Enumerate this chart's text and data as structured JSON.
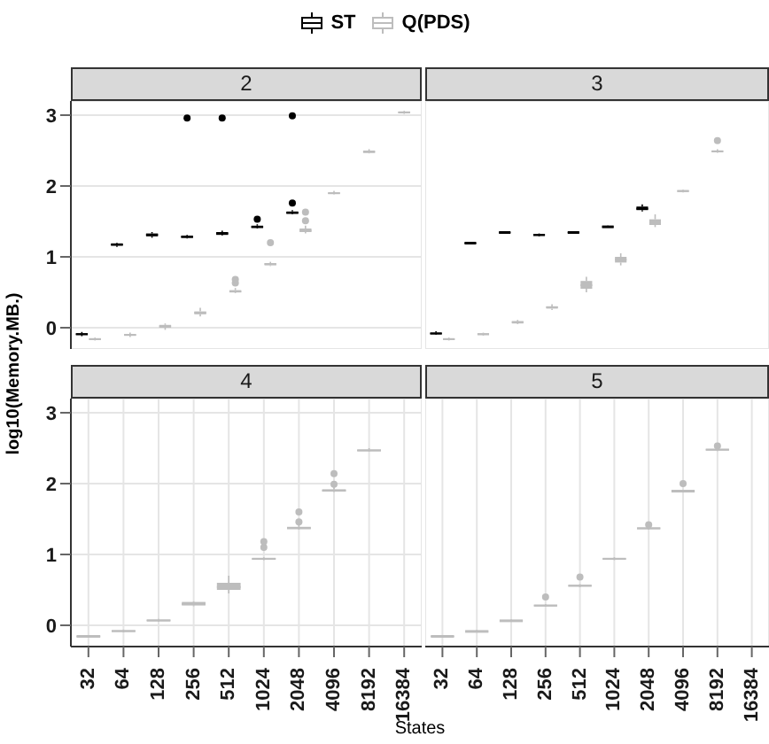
{
  "chart_data": [
    {
      "type": "box",
      "title": "2",
      "ylabel": "log10(Memory.MB.)",
      "legend": "top",
      "grid": true,
      "tick_labels": "y",
      "categories": [
        "32",
        "64",
        "128",
        "256",
        "512",
        "1024",
        "2048",
        "4096",
        "8192",
        "16384"
      ],
      "ylim": [
        -0.3,
        3.2
      ],
      "yticks": [
        0,
        1,
        2,
        3
      ],
      "series": [
        {
          "name": "ST",
          "color": "#000000",
          "boxes": [
            {
              "low": -0.12,
              "q1": -0.1,
              "median": -0.09,
              "q3": -0.08,
              "high": -0.06
            },
            {
              "low": 1.14,
              "q1": 1.16,
              "median": 1.17,
              "q3": 1.19,
              "high": 1.2
            },
            {
              "low": 1.27,
              "q1": 1.29,
              "median": 1.31,
              "q3": 1.33,
              "high": 1.35
            },
            {
              "low": 1.26,
              "q1": 1.27,
              "median": 1.28,
              "q3": 1.3,
              "high": 1.31,
              "outliers": [
                2.96
              ]
            },
            {
              "low": 1.3,
              "q1": 1.31,
              "median": 1.33,
              "q3": 1.35,
              "high": 1.37,
              "outliers": [
                2.96
              ]
            },
            {
              "low": 1.4,
              "q1": 1.41,
              "median": 1.42,
              "q3": 1.44,
              "high": 1.46,
              "outliers": [
                1.53
              ]
            },
            {
              "low": 1.6,
              "q1": 1.61,
              "median": 1.62,
              "q3": 1.64,
              "high": 1.66,
              "outliers": [
                1.76,
                2.99
              ]
            },
            null,
            null,
            null
          ]
        },
        {
          "name": "Q(PDS)",
          "color": "#bdbdbd",
          "boxes": [
            {
              "low": -0.18,
              "q1": -0.17,
              "median": -0.16,
              "q3": -0.15,
              "high": -0.14
            },
            {
              "low": -0.13,
              "q1": -0.11,
              "median": -0.1,
              "q3": -0.09,
              "high": -0.07
            },
            {
              "low": -0.03,
              "q1": 0,
              "median": 0.02,
              "q3": 0.04,
              "high": 0.06
            },
            {
              "low": 0.16,
              "q1": 0.19,
              "median": 0.21,
              "q3": 0.23,
              "high": 0.28
            },
            {
              "low": 0.49,
              "q1": 0.5,
              "median": 0.51,
              "q3": 0.53,
              "high": 0.56,
              "outliers": [
                0.63,
                0.68
              ]
            },
            {
              "low": 0.87,
              "q1": 0.88,
              "median": 0.9,
              "q3": 0.91,
              "high": 0.93,
              "outliers": [
                1.2
              ]
            },
            {
              "low": 1.33,
              "q1": 1.35,
              "median": 1.37,
              "q3": 1.4,
              "high": 1.44,
              "outliers": [
                1.51,
                1.63
              ]
            },
            {
              "low": 1.88,
              "q1": 1.89,
              "median": 1.9,
              "q3": 1.91,
              "high": 1.93
            },
            {
              "low": 2.46,
              "q1": 2.47,
              "median": 2.48,
              "q3": 2.5,
              "high": 2.52
            },
            {
              "low": 3.02,
              "q1": 3.03,
              "median": 3.04,
              "q3": 3.05,
              "high": 3.06
            }
          ]
        }
      ]
    },
    {
      "type": "box",
      "title": "3",
      "grid": true,
      "tick_labels": false,
      "categories": [
        "32",
        "64",
        "128",
        "256",
        "512",
        "1024",
        "2048",
        "4096",
        "8192",
        "16384"
      ],
      "ylim": [
        -0.3,
        3.2
      ],
      "yticks": [
        0,
        1,
        2,
        3
      ],
      "series": [
        {
          "name": "ST",
          "color": "#000000",
          "boxes": [
            {
              "low": -0.1,
              "q1": -0.09,
              "median": -0.08,
              "q3": -0.07,
              "high": -0.05
            },
            {
              "low": 1.19,
              "q1": 1.2,
              "median": 1.2,
              "q3": 1.2,
              "high": 1.21
            },
            {
              "low": 1.34,
              "q1": 1.35,
              "median": 1.35,
              "q3": 1.35,
              "high": 1.36
            },
            {
              "low": 1.29,
              "q1": 1.3,
              "median": 1.31,
              "q3": 1.32,
              "high": 1.33
            },
            {
              "low": 1.34,
              "q1": 1.35,
              "median": 1.35,
              "q3": 1.35,
              "high": 1.36
            },
            {
              "low": 1.42,
              "q1": 1.43,
              "median": 1.43,
              "q3": 1.43,
              "high": 1.44
            },
            {
              "low": 1.64,
              "q1": 1.66,
              "median": 1.68,
              "q3": 1.71,
              "high": 1.74
            },
            null,
            null,
            null
          ]
        },
        {
          "name": "Q(PDS)",
          "color": "#bdbdbd",
          "boxes": [
            {
              "low": -0.18,
              "q1": -0.17,
              "median": -0.16,
              "q3": -0.15,
              "high": -0.14
            },
            {
              "low": -0.11,
              "q1": -0.1,
              "median": -0.09,
              "q3": -0.08,
              "high": -0.07
            },
            {
              "low": 0.05,
              "q1": 0.06,
              "median": 0.08,
              "q3": 0.09,
              "high": 0.11
            },
            {
              "low": 0.25,
              "q1": 0.27,
              "median": 0.29,
              "q3": 0.3,
              "high": 0.33
            },
            {
              "low": 0.5,
              "q1": 0.55,
              "median": 0.6,
              "q3": 0.66,
              "high": 0.72
            },
            {
              "low": 0.88,
              "q1": 0.92,
              "median": 0.96,
              "q3": 1.0,
              "high": 1.05
            },
            {
              "low": 1.42,
              "q1": 1.45,
              "median": 1.48,
              "q3": 1.53,
              "high": 1.6
            },
            {
              "low": 1.91,
              "q1": 1.92,
              "median": 1.93,
              "q3": 1.94,
              "high": 1.95
            },
            {
              "low": 2.47,
              "q1": 2.48,
              "median": 2.49,
              "q3": 2.5,
              "high": 2.52,
              "outliers": [
                2.64
              ]
            },
            null
          ]
        }
      ]
    },
    {
      "type": "box",
      "title": "4",
      "xlabel": "States",
      "grid": true,
      "categories": [
        "32",
        "64",
        "128",
        "256",
        "512",
        "1024",
        "2048",
        "4096",
        "8192",
        "16384"
      ],
      "ylim": [
        -0.3,
        3.2
      ],
      "yticks": [
        0,
        1,
        2,
        3
      ],
      "series": [
        {
          "name": "Q(PDS)",
          "color": "#bdbdbd",
          "boxes": [
            {
              "low": -0.16,
              "q1": -0.15,
              "median": -0.15,
              "q3": -0.15,
              "high": -0.14
            },
            {
              "low": -0.1,
              "q1": -0.09,
              "median": -0.08,
              "q3": -0.07,
              "high": -0.06
            },
            {
              "low": 0.05,
              "q1": 0.06,
              "median": 0.07,
              "q3": 0.08,
              "high": 0.09
            },
            {
              "low": 0.27,
              "q1": 0.28,
              "median": 0.3,
              "q3": 0.33,
              "high": 0.34
            },
            {
              "low": 0.45,
              "q1": 0.5,
              "median": 0.54,
              "q3": 0.6,
              "high": 0.7
            },
            {
              "low": 0.92,
              "q1": 0.93,
              "median": 0.94,
              "q3": 0.95,
              "high": 0.96,
              "outliers": [
                1.1,
                1.18
              ]
            },
            {
              "low": 1.35,
              "q1": 1.36,
              "median": 1.37,
              "q3": 1.39,
              "high": 1.42,
              "outliers": [
                1.46,
                1.6
              ]
            },
            {
              "low": 1.88,
              "q1": 1.89,
              "median": 1.9,
              "q3": 1.92,
              "high": 1.95,
              "outliers": [
                1.99,
                2.14
              ]
            },
            {
              "low": 2.45,
              "q1": 2.46,
              "median": 2.47,
              "q3": 2.48,
              "high": 2.5
            },
            null
          ]
        }
      ]
    },
    {
      "type": "box",
      "title": "5",
      "grid": true,
      "tick_labels": "x",
      "categories": [
        "32",
        "64",
        "128",
        "256",
        "512",
        "1024",
        "2048",
        "4096",
        "8192",
        "16384"
      ],
      "ylim": [
        -0.3,
        3.2
      ],
      "yticks": [
        0,
        1,
        2,
        3
      ],
      "series": [
        {
          "name": "Q(PDS)",
          "color": "#bdbdbd",
          "boxes": [
            {
              "low": -0.16,
              "q1": -0.15,
              "median": -0.15,
              "q3": -0.15,
              "high": -0.14
            },
            {
              "low": -0.09,
              "q1": -0.08,
              "median": -0.08,
              "q3": -0.08,
              "high": -0.07
            },
            {
              "low": 0.06,
              "q1": 0.07,
              "median": 0.07,
              "q3": 0.07,
              "high": 0.08
            },
            {
              "low": 0.27,
              "q1": 0.28,
              "median": 0.28,
              "q3": 0.29,
              "high": 0.3,
              "outliers": [
                0.4
              ]
            },
            {
              "low": 0.54,
              "q1": 0.55,
              "median": 0.56,
              "q3": 0.57,
              "high": 0.58,
              "outliers": [
                0.68
              ]
            },
            {
              "low": 0.92,
              "q1": 0.93,
              "median": 0.94,
              "q3": 0.95,
              "high": 0.96
            },
            {
              "low": 1.35,
              "q1": 1.36,
              "median": 1.37,
              "q3": 1.38,
              "high": 1.39,
              "outliers": [
                1.42
              ]
            },
            {
              "low": 1.89,
              "q1": 1.9,
              "median": 1.9,
              "q3": 1.9,
              "high": 1.91,
              "outliers": [
                2.0
              ]
            },
            {
              "low": 2.46,
              "q1": 2.47,
              "median": 2.48,
              "q3": 2.49,
              "high": 2.5,
              "outliers": [
                2.53
              ]
            },
            null
          ]
        }
      ]
    }
  ]
}
